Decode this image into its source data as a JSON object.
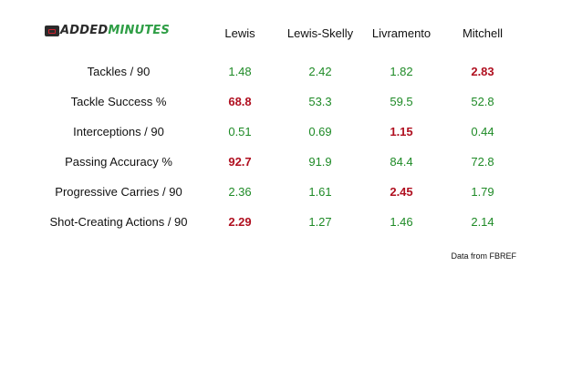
{
  "brand": {
    "part1": "ADDED",
    "part2": "MINUTES"
  },
  "players": [
    "Lewis",
    "Lewis-Skelly",
    "Livramento",
    "Mitchell"
  ],
  "rows": [
    {
      "label": "Tackles / 90",
      "values": [
        "1.48",
        "2.42",
        "1.82",
        "2.83"
      ],
      "best": 3
    },
    {
      "label": "Tackle Success %",
      "values": [
        "68.8",
        "53.3",
        "59.5",
        "52.8"
      ],
      "best": 0
    },
    {
      "label": "Interceptions / 90",
      "values": [
        "0.51",
        "0.69",
        "1.15",
        "0.44"
      ],
      "best": 2
    },
    {
      "label": "Passing Accuracy %",
      "values": [
        "92.7",
        "91.9",
        "84.4",
        "72.8"
      ],
      "best": 0
    },
    {
      "label": "Progressive Carries / 90",
      "values": [
        "2.36",
        "1.61",
        "2.45",
        "1.79"
      ],
      "best": 2
    },
    {
      "label": "Shot-Creating Actions / 90",
      "values": [
        "2.29",
        "1.27",
        "1.46",
        "2.14"
      ],
      "best": 0
    }
  ],
  "source": "Data from FBREF",
  "colors": {
    "normal": "#1e8a26",
    "best": "#b01020"
  }
}
